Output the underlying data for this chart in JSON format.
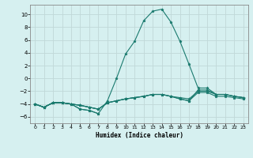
{
  "title": "",
  "xlabel": "Humidex (Indice chaleur)",
  "ylabel": "",
  "background_color": "#d6f0f0",
  "grid_color": "#c0d8d8",
  "line_color": "#1a7a6e",
  "xlim": [
    -0.5,
    23.5
  ],
  "ylim": [
    -7,
    11.5
  ],
  "xticks": [
    0,
    1,
    2,
    3,
    4,
    5,
    6,
    7,
    8,
    9,
    10,
    11,
    12,
    13,
    14,
    15,
    16,
    17,
    18,
    19,
    20,
    21,
    22,
    23
  ],
  "yticks": [
    -6,
    -4,
    -2,
    0,
    2,
    4,
    6,
    8,
    10
  ],
  "series": [
    {
      "x": [
        0,
        1,
        2,
        3,
        4,
        5,
        6,
        7,
        8,
        9,
        10,
        11,
        12,
        13,
        14,
        15,
        16,
        17,
        18,
        19,
        20,
        21,
        22,
        23
      ],
      "y": [
        -4.0,
        -4.5,
        -3.8,
        -3.8,
        -4.0,
        -4.8,
        -5.0,
        -5.5,
        null,
        null,
        null,
        null,
        null,
        null,
        null,
        null,
        null,
        null,
        null,
        null,
        null,
        null,
        null,
        null
      ]
    },
    {
      "x": [
        0,
        1,
        2,
        3,
        4,
        5,
        6,
        7,
        8,
        9,
        10,
        11,
        12,
        13,
        14,
        15,
        16,
        17,
        18,
        19,
        20,
        21,
        22,
        23
      ],
      "y": [
        -4.0,
        -4.5,
        -3.8,
        -3.8,
        -4.0,
        -4.8,
        -5.0,
        -5.5,
        -3.5,
        0.0,
        3.8,
        5.8,
        9.0,
        10.5,
        10.8,
        8.8,
        5.8,
        2.2,
        -1.5,
        -1.5,
        -2.5,
        -2.5,
        -2.8,
        -3.0
      ]
    },
    {
      "x": [
        0,
        1,
        2,
        3,
        4,
        5,
        6,
        7,
        8,
        9,
        10,
        11,
        12,
        13,
        14,
        15,
        16,
        17,
        18,
        19,
        20,
        21,
        22,
        23
      ],
      "y": [
        -4.0,
        -4.5,
        -3.8,
        -3.8,
        -4.0,
        -4.2,
        -4.5,
        -4.8,
        -3.8,
        -3.5,
        -3.2,
        -3.0,
        -2.8,
        -2.5,
        -2.5,
        -2.8,
        -3.2,
        -3.5,
        -1.8,
        -1.8,
        -2.5,
        -2.5,
        -2.8,
        -3.0
      ]
    },
    {
      "x": [
        0,
        1,
        2,
        3,
        4,
        5,
        6,
        7,
        8,
        9,
        10,
        11,
        12,
        13,
        14,
        15,
        16,
        17,
        18,
        19,
        20,
        21,
        22,
        23
      ],
      "y": [
        -4.0,
        -4.5,
        -3.8,
        -3.8,
        -4.0,
        -4.2,
        -4.5,
        -4.8,
        -3.8,
        -3.5,
        -3.2,
        -3.0,
        -2.8,
        -2.5,
        -2.5,
        -2.8,
        -3.2,
        -3.5,
        -2.2,
        -2.2,
        -2.8,
        -2.8,
        -3.0,
        -3.2
      ]
    },
    {
      "x": [
        0,
        1,
        2,
        3,
        4,
        5,
        6,
        7,
        8,
        9,
        10,
        11,
        12,
        13,
        14,
        15,
        16,
        17,
        18,
        19,
        20,
        21,
        22,
        23
      ],
      "y": [
        -4.0,
        -4.5,
        -3.8,
        -3.8,
        -4.0,
        -4.2,
        -4.5,
        -4.8,
        -3.8,
        -3.5,
        -3.2,
        -3.0,
        -2.8,
        -2.5,
        -2.5,
        -2.8,
        -3.0,
        -3.2,
        -2.0,
        -2.0,
        -2.5,
        -2.5,
        -2.8,
        -3.0
      ]
    }
  ]
}
